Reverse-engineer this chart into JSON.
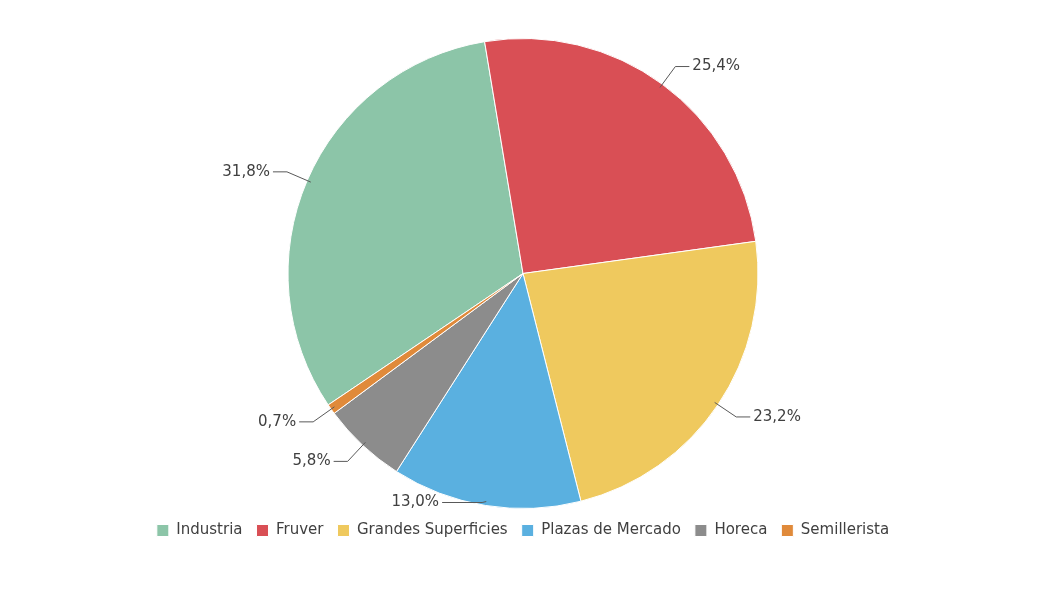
{
  "chart_data": {
    "type": "pie",
    "categories": [
      "Industria",
      "Fruver",
      "Grandes Superficies",
      "Plazas de Mercado",
      "Horeca",
      "Semillerista"
    ],
    "values": [
      31.8,
      25.4,
      23.2,
      13.0,
      5.8,
      0.7
    ],
    "value_labels": [
      "31,8%",
      "25,4%",
      "23,2%",
      "13,0%",
      "5,8%",
      "0,7%"
    ],
    "colors": [
      "#8cc5a8",
      "#d94f55",
      "#efc95e",
      "#5ab0e0",
      "#8c8c8c",
      "#e08a3a"
    ],
    "legend": "bottom"
  }
}
